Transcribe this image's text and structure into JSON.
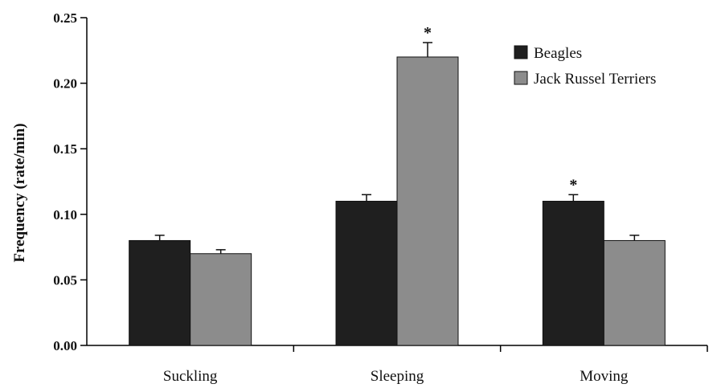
{
  "chart_data": {
    "type": "bar",
    "categories": [
      "Suckling",
      "Sleeping",
      "Moving"
    ],
    "series": [
      {
        "name": "Beagles",
        "color": "#1f1f1f",
        "values": [
          0.08,
          0.11,
          0.11
        ],
        "errors": [
          0.004,
          0.005,
          0.005
        ]
      },
      {
        "name": "Jack Russel Terriers",
        "color": "#8c8c8c",
        "values": [
          0.07,
          0.22,
          0.08
        ],
        "errors": [
          0.003,
          0.011,
          0.004
        ]
      }
    ],
    "ylabel": "Frequency (rate/min)",
    "xlabel": "",
    "ylim": [
      0,
      0.25
    ],
    "yticks": [
      "0.00",
      "0.05",
      "0.10",
      "0.15",
      "0.20",
      "0.25"
    ],
    "annotations": [
      {
        "text": "*",
        "category": "Sleeping",
        "series": "Jack Russel Terriers"
      },
      {
        "text": "*",
        "category": "Moving",
        "series": "Beagles"
      }
    ],
    "legend_position": "top-right",
    "grid": false
  }
}
